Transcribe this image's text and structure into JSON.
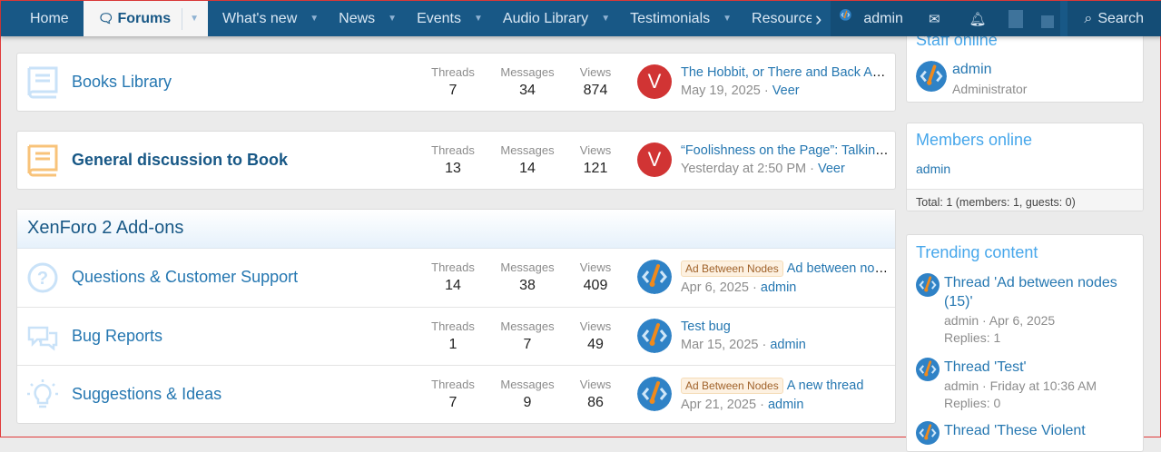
{
  "nav": {
    "items": [
      {
        "label": "Home"
      },
      {
        "label": "Forums"
      },
      {
        "label": "What's new"
      },
      {
        "label": "News"
      },
      {
        "label": "Events"
      },
      {
        "label": "Audio Library"
      },
      {
        "label": "Testimonials"
      },
      {
        "label": "Resource"
      }
    ],
    "user": "admin",
    "search": "Search"
  },
  "nodes": [
    {
      "title": "Books Library",
      "threads": "7",
      "messages": "34",
      "views": "874",
      "last_title": "The Hobbit, or There and Back Again",
      "last_date": "May 19, 2025",
      "last_user": "Veer",
      "avatar_letter": "V"
    },
    {
      "title": "General discussion to Book",
      "threads": "13",
      "messages": "14",
      "views": "121",
      "last_title": "“Foolishness on the Page”: Talking …",
      "last_date": "Yesterday at 2:50 PM",
      "last_user": "Veer",
      "avatar_letter": "V"
    }
  ],
  "stat_labels": {
    "threads": "Threads",
    "messages": "Messages",
    "views": "Views"
  },
  "category": {
    "title": "XenForo 2 Add-ons",
    "nodes": [
      {
        "title": "Questions & Customer Support",
        "threads": "14",
        "messages": "38",
        "views": "409",
        "prefix": "Ad Between Nodes",
        "last_title": "Ad between node…",
        "last_date": "Apr 6, 2025",
        "last_user": "admin"
      },
      {
        "title": "Bug Reports",
        "threads": "1",
        "messages": "7",
        "views": "49",
        "last_title": "Test bug",
        "last_date": "Mar 15, 2025",
        "last_user": "admin"
      },
      {
        "title": "Suggestions & Ideas",
        "threads": "7",
        "messages": "9",
        "views": "86",
        "prefix": "Ad Between Nodes",
        "last_title": "A new thread",
        "last_date": "Apr 21, 2025",
        "last_user": "admin"
      }
    ]
  },
  "sidebar": {
    "staff": {
      "title": "Staff online",
      "name": "admin",
      "role": "Administrator"
    },
    "members": {
      "title": "Members online",
      "list": "admin",
      "total": "Total: 1 (members: 1, guests: 0)"
    },
    "trending": {
      "title": "Trending content",
      "items": [
        {
          "title": "Thread 'Ad between nodes (15)'",
          "meta": "admin · Apr 6, 2025",
          "replies": "Replies: 1"
        },
        {
          "title": "Thread 'Test'",
          "meta": "admin · Friday at 10:36 AM",
          "replies": "Replies: 0"
        },
        {
          "title": "Thread 'These Violent"
        }
      ]
    }
  },
  "colors": {
    "nav": "#185886",
    "link": "#2577b1",
    "accent": "#47a7eb"
  }
}
